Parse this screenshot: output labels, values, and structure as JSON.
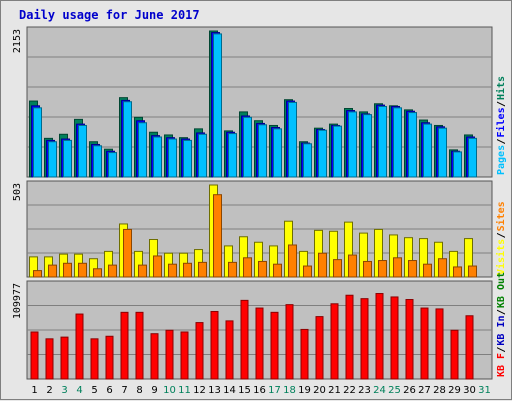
{
  "title": "Daily usage for June 2017",
  "colors": {
    "background": "#e6e6e6",
    "plot": "#c0c0c0",
    "grid": "#7f7f7f",
    "hits": "#00805b",
    "files": "#0000ff",
    "pages": "#00c0ff",
    "visits": "#ffff00",
    "sites": "#ff8000",
    "kbin": "#0000c0",
    "kbout": "#008000",
    "kbf": "#ff0000",
    "title": "#0000cc"
  },
  "chart_data": [
    {
      "type": "bar",
      "panel": "hits-files-pages",
      "ymax_label": "2153",
      "legend": [
        {
          "name": "Pages",
          "color": "#00c0ff"
        },
        {
          "name": "Files",
          "color": "#0000ff"
        },
        {
          "name": "Hits",
          "color": "#00805b"
        }
      ],
      "categories": [
        "1",
        "2",
        "3",
        "4",
        "5",
        "6",
        "7",
        "8",
        "9",
        "10",
        "11",
        "12",
        "13",
        "14",
        "15",
        "16",
        "17",
        "18",
        "19",
        "20",
        "21",
        "22",
        "23",
        "24",
        "25",
        "26",
        "27",
        "28",
        "29",
        "30",
        "31"
      ],
      "weekend_days": [
        "3",
        "4",
        "10",
        "11",
        "17",
        "18",
        "24",
        "25",
        "31"
      ],
      "series": [
        {
          "name": "Hits",
          "values": [
            1120,
            570,
            630,
            850,
            520,
            410,
            1170,
            880,
            660,
            620,
            580,
            710,
            2153,
            680,
            960,
            830,
            760,
            1140,
            520,
            720,
            780,
            1010,
            960,
            1080,
            1050,
            990,
            840,
            760,
            400,
            620,
            0
          ]
        },
        {
          "name": "Files",
          "values": [
            1050,
            540,
            560,
            780,
            480,
            380,
            1130,
            830,
            610,
            580,
            560,
            650,
            2130,
            660,
            900,
            790,
            730,
            1120,
            500,
            700,
            760,
            980,
            930,
            1060,
            1040,
            970,
            800,
            740,
            380,
            590,
            0
          ]
        },
        {
          "name": "Pages",
          "values": [
            1020,
            520,
            540,
            760,
            460,
            360,
            1110,
            800,
            590,
            560,
            540,
            630,
            2110,
            640,
            880,
            770,
            710,
            1100,
            490,
            690,
            750,
            960,
            920,
            1040,
            1020,
            950,
            780,
            720,
            370,
            570,
            0
          ]
        }
      ]
    },
    {
      "type": "bar",
      "panel": "visits-sites",
      "ymax_label": "503",
      "legend": [
        {
          "name": "Visits",
          "color": "#ffff00"
        },
        {
          "name": "Sites",
          "color": "#ff8000"
        }
      ],
      "series": [
        {
          "name": "Visits",
          "values": [
            110,
            110,
            125,
            125,
            100,
            140,
            290,
            140,
            205,
            130,
            130,
            150,
            503,
            170,
            220,
            190,
            170,
            305,
            140,
            255,
            250,
            300,
            240,
            260,
            230,
            215,
            210,
            190,
            140,
            210,
            0
          ]
        },
        {
          "name": "Sites",
          "values": [
            35,
            65,
            75,
            75,
            45,
            65,
            260,
            65,
            115,
            70,
            75,
            80,
            450,
            80,
            105,
            85,
            70,
            175,
            60,
            130,
            95,
            120,
            85,
            90,
            105,
            90,
            70,
            100,
            55,
            60,
            0
          ]
        }
      ]
    },
    {
      "type": "bar",
      "panel": "kbytes",
      "ymax_label": "109977",
      "legend": [
        {
          "name": "KB F",
          "color": "#ff0000"
        },
        {
          "name": "KB In",
          "color": "#0000c0"
        },
        {
          "name": "KB Out",
          "color": "#008000"
        }
      ],
      "series": [
        {
          "name": "KB F",
          "values": [
            55000,
            47000,
            49000,
            76000,
            47000,
            50000,
            78000,
            78000,
            53000,
            57000,
            55000,
            66000,
            79000,
            68000,
            92000,
            83000,
            78000,
            87000,
            58000,
            73000,
            88000,
            98000,
            94000,
            100000,
            96000,
            93000,
            83000,
            82000,
            57000,
            74000,
            0
          ]
        }
      ]
    }
  ]
}
